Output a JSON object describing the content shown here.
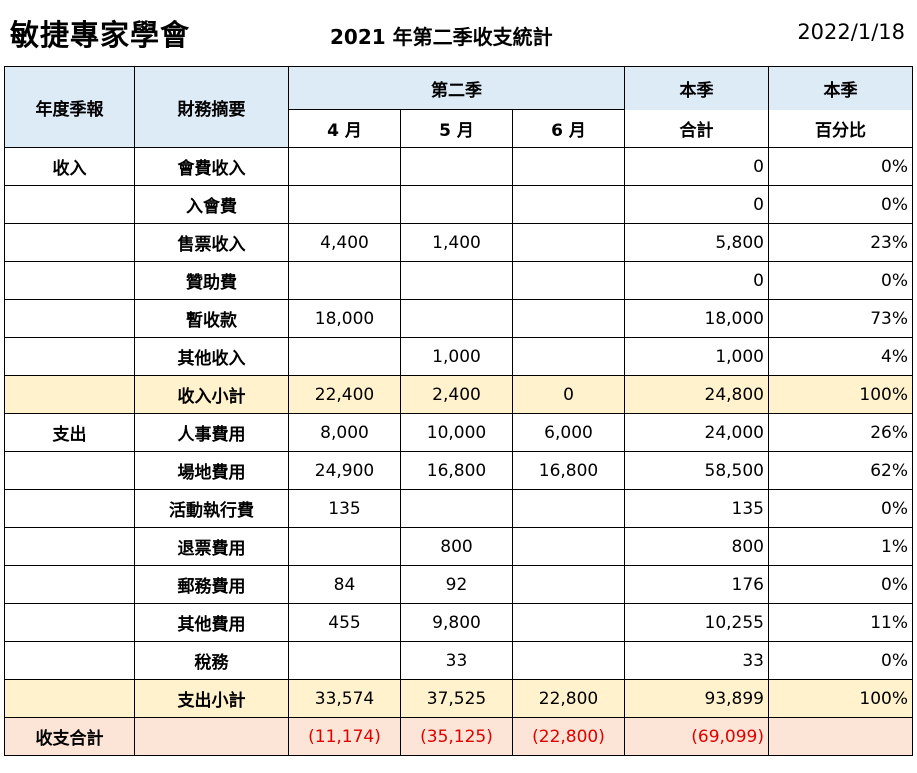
{
  "header": {
    "org_name": "敏捷專家學會",
    "report_title": "2021  年第二季收支統計",
    "report_date": "2022/1/18"
  },
  "columns": {
    "period": "年度季報",
    "summary": "財務摘要",
    "quarter": "第二季",
    "m4": "4 月",
    "m5": "5 月",
    "m6": "6 月",
    "total_top": "本季",
    "total_bottom": "合計",
    "pct_top": "本季",
    "pct_bottom": "百分比"
  },
  "rows": [
    {
      "cat": "收入",
      "item": "會費收入",
      "m4": "",
      "m5": "",
      "m6": "",
      "total": "0",
      "pct": "0%"
    },
    {
      "cat": "",
      "item": "入會費",
      "m4": "",
      "m5": "",
      "m6": "",
      "total": "0",
      "pct": "0%"
    },
    {
      "cat": "",
      "item": "售票收入",
      "m4": "4,400",
      "m5": "1,400",
      "m6": "",
      "total": "5,800",
      "pct": "23%"
    },
    {
      "cat": "",
      "item": "贊助費",
      "m4": "",
      "m5": "",
      "m6": "",
      "total": "0",
      "pct": "0%"
    },
    {
      "cat": "",
      "item": "暫收款",
      "m4": "18,000",
      "m5": "",
      "m6": "",
      "total": "18,000",
      "pct": "73%"
    },
    {
      "cat": "",
      "item": "其他收入",
      "m4": "",
      "m5": "1,000",
      "m6": "",
      "total": "1,000",
      "pct": "4%"
    },
    {
      "cat": "",
      "item": "收入小計",
      "m4": "22,400",
      "m5": "2,400",
      "m6": "0",
      "total": "24,800",
      "pct": "100%"
    },
    {
      "cat": "支出",
      "item": "人事費用",
      "m4": "8,000",
      "m5": "10,000",
      "m6": "6,000",
      "total": "24,000",
      "pct": "26%"
    },
    {
      "cat": "",
      "item": "場地費用",
      "m4": "24,900",
      "m5": "16,800",
      "m6": "16,800",
      "total": "58,500",
      "pct": "62%"
    },
    {
      "cat": "",
      "item": "活動執行費",
      "m4": "135",
      "m5": "",
      "m6": "",
      "total": "135",
      "pct": "0%"
    },
    {
      "cat": "",
      "item": "退票費用",
      "m4": "",
      "m5": "800",
      "m6": "",
      "total": "800",
      "pct": "1%"
    },
    {
      "cat": "",
      "item": "郵務費用",
      "m4": "84",
      "m5": "92",
      "m6": "",
      "total": "176",
      "pct": "0%"
    },
    {
      "cat": "",
      "item": "其他費用",
      "m4": "455",
      "m5": "9,800",
      "m6": "",
      "total": "10,255",
      "pct": "11%"
    },
    {
      "cat": "",
      "item": "稅務",
      "m4": "",
      "m5": "33",
      "m6": "",
      "total": "33",
      "pct": "0%"
    },
    {
      "cat": "",
      "item": "支出小計",
      "m4": "33,574",
      "m5": "37,525",
      "m6": "22,800",
      "total": "93,899",
      "pct": "100%"
    }
  ],
  "balance": {
    "label": "收支合計",
    "item": "",
    "m4": "(11,174)",
    "m5": "(35,125)",
    "m6": "(22,800)",
    "total": "(69,099)",
    "pct": ""
  },
  "colors": {
    "header_blue": "#ddebf7",
    "subtotal_yellow": "#fff2cc",
    "balance_pink": "#fce4d6",
    "negative_red": "#e00000"
  }
}
